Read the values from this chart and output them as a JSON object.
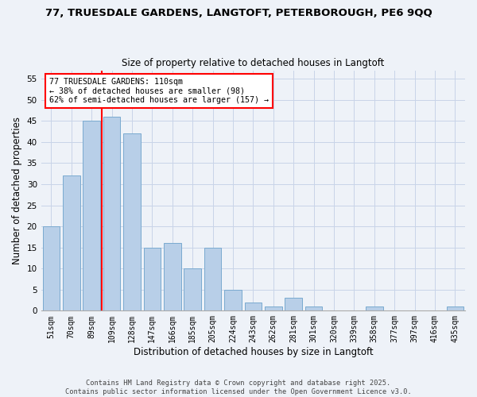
{
  "title_line1": "77, TRUESDALE GARDENS, LANGTOFT, PETERBOROUGH, PE6 9QQ",
  "title_line2": "Size of property relative to detached houses in Langtoft",
  "xlabel": "Distribution of detached houses by size in Langtoft",
  "ylabel": "Number of detached properties",
  "categories": [
    "51sqm",
    "70sqm",
    "89sqm",
    "109sqm",
    "128sqm",
    "147sqm",
    "166sqm",
    "185sqm",
    "205sqm",
    "224sqm",
    "243sqm",
    "262sqm",
    "281sqm",
    "301sqm",
    "320sqm",
    "339sqm",
    "358sqm",
    "377sqm",
    "397sqm",
    "416sqm",
    "435sqm"
  ],
  "values": [
    20,
    32,
    45,
    46,
    42,
    15,
    16,
    10,
    15,
    5,
    2,
    1,
    3,
    1,
    0,
    0,
    1,
    0,
    0,
    0,
    1
  ],
  "bar_color": "#b8cfe8",
  "bar_edge_color": "#7aaad0",
  "annotation_line1": "77 TRUESDALE GARDENS: 110sqm",
  "annotation_line2": "← 38% of detached houses are smaller (98)",
  "annotation_line3": "62% of semi-detached houses are larger (157) →",
  "vline_x": 2.5,
  "vline_color": "red",
  "annotation_box_color": "white",
  "annotation_box_edge_color": "red",
  "ylim_max": 57,
  "yticks": [
    0,
    5,
    10,
    15,
    20,
    25,
    30,
    35,
    40,
    45,
    50,
    55
  ],
  "footer_line1": "Contains HM Land Registry data © Crown copyright and database right 2025.",
  "footer_line2": "Contains public sector information licensed under the Open Government Licence v3.0.",
  "background_color": "#eef2f8",
  "grid_color": "#c8d4e8"
}
